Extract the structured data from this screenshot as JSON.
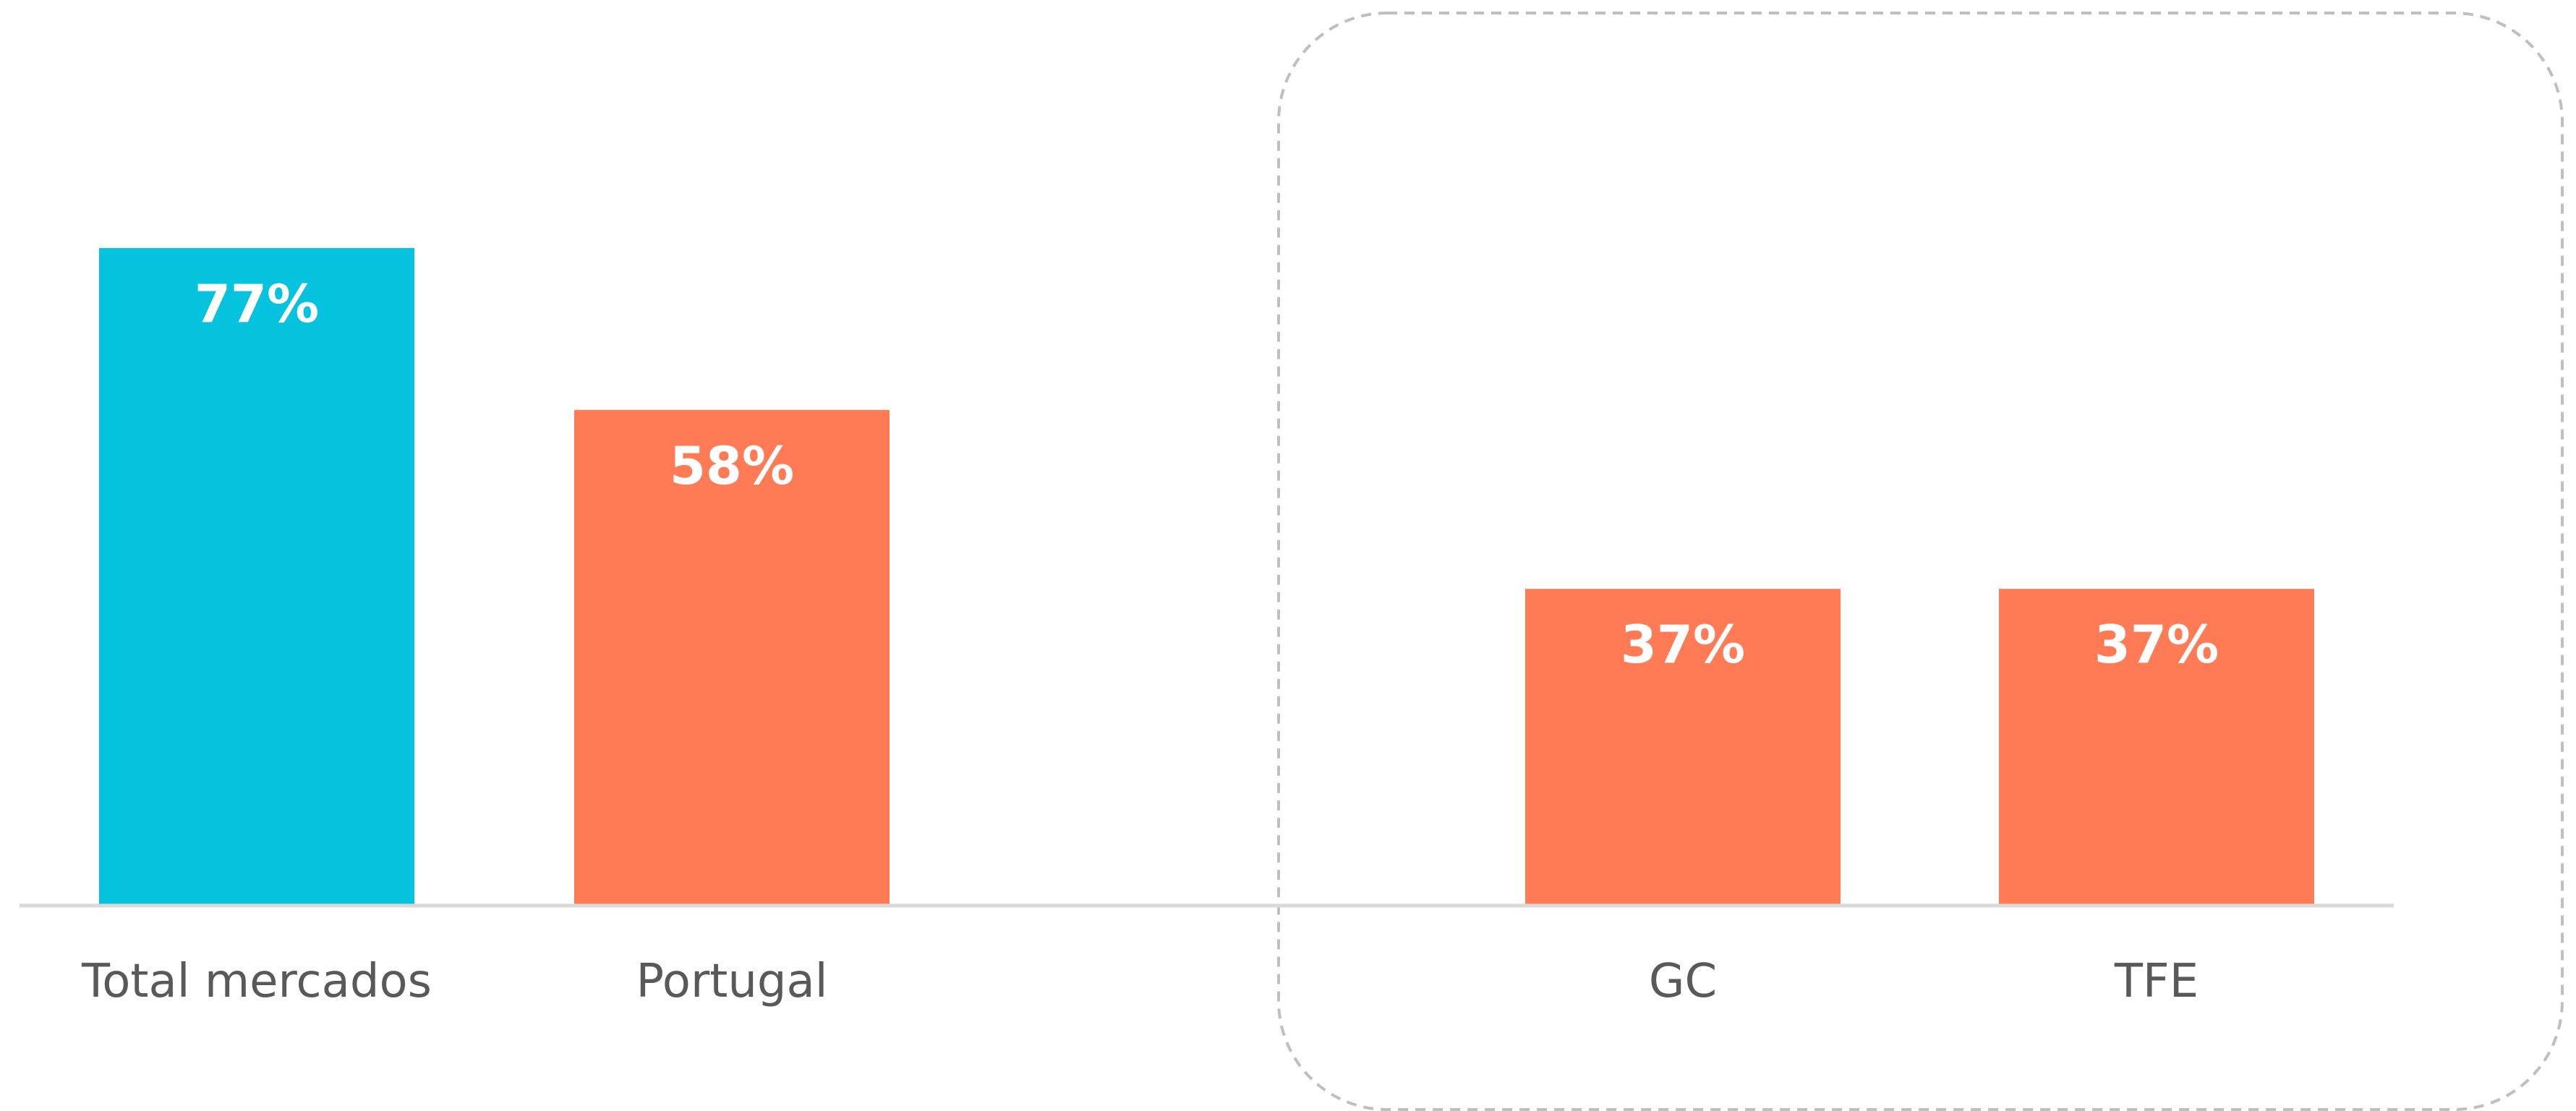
{
  "chart_data": {
    "type": "bar",
    "categories": [
      "Total mercados",
      "Portugal",
      "GC",
      "TFE"
    ],
    "values": [
      77,
      58,
      37,
      37
    ],
    "value_labels": [
      "77%",
      "58%",
      "37%",
      "37%"
    ],
    "unit": "%",
    "ylim": [
      0,
      100
    ],
    "grid": false,
    "legend": "none",
    "highlight_group": [
      "GC",
      "TFE"
    ],
    "colors": {
      "bar_primary": "#05C3DE",
      "bar_secondary": "#FF7B55",
      "bar_label_text": "#FFFFFF",
      "axis_line": "#D9D9D9",
      "category_text": "#595959",
      "group_border": "#BFBFBF"
    },
    "bar_colors": [
      "#05C3DE",
      "#FF7B55",
      "#FF7B55",
      "#FF7B55"
    ]
  }
}
